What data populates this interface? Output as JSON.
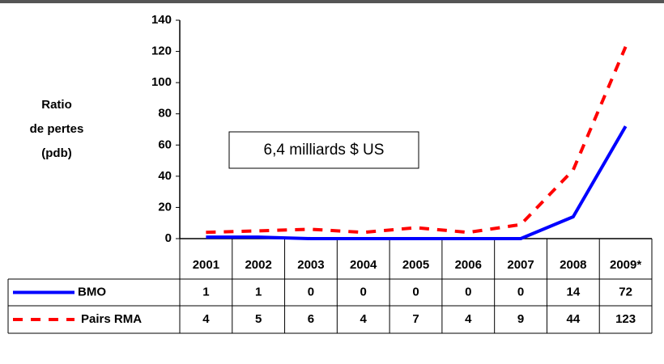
{
  "chart_data": {
    "type": "line",
    "y_label": [
      "Ratio",
      "de pertes",
      "(pdb)"
    ],
    "annotation": "6,4 milliards $ US",
    "categories": [
      "2001",
      "2002",
      "2003",
      "2004",
      "2005",
      "2006",
      "2007",
      "2008",
      "2009*"
    ],
    "series": [
      {
        "name": "BMO",
        "color": "#0000ff",
        "dash": false,
        "values": [
          1,
          1,
          0,
          0,
          0,
          0,
          0,
          14,
          72
        ]
      },
      {
        "name": "Pairs RMA",
        "color": "#ff0000",
        "dash": true,
        "values": [
          4,
          5,
          6,
          4,
          7,
          4,
          9,
          44,
          123
        ]
      }
    ],
    "ylim": [
      0,
      140
    ],
    "yticks": [
      0,
      20,
      40,
      60,
      80,
      100,
      120,
      140
    ]
  }
}
